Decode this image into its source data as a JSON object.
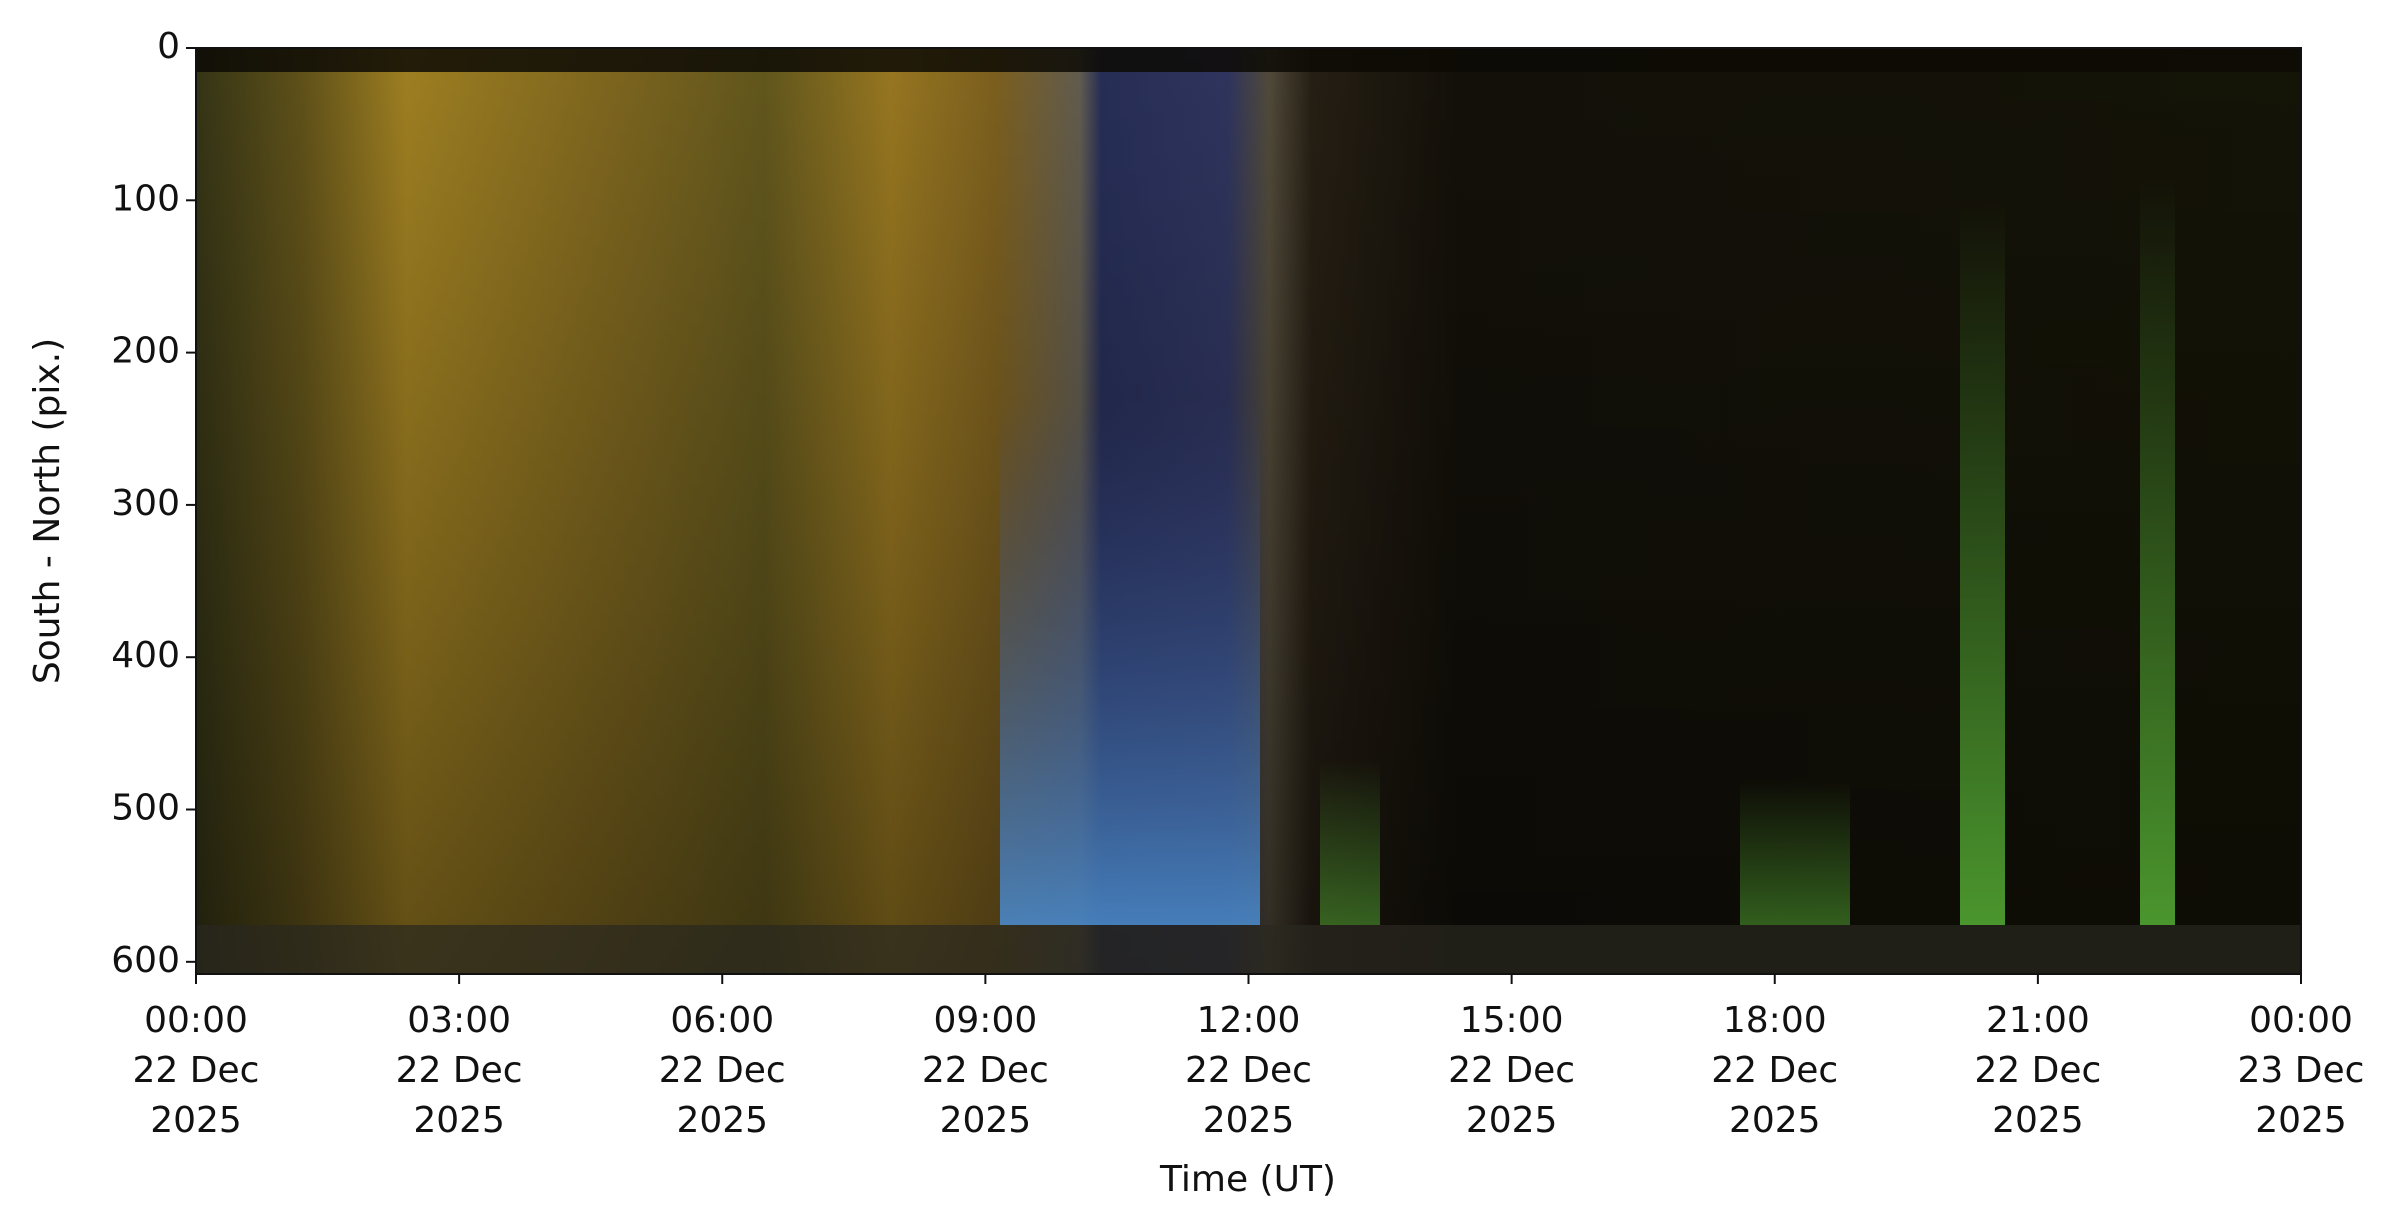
{
  "chart_data": {
    "type": "keogram",
    "xlabel": "Time (UT)",
    "ylabel": "South - North (pix.)",
    "xlim": [
      "2025-12-22T00:00",
      "2025-12-23T00:00"
    ],
    "xticks": [
      {
        "value": "2025-12-22T00:00",
        "label": "00:00\n22 Dec\n2025"
      },
      {
        "value": "2025-12-22T03:00",
        "label": "03:00\n22 Dec\n2025"
      },
      {
        "value": "2025-12-22T06:00",
        "label": "06:00\n22 Dec\n2025"
      },
      {
        "value": "2025-12-22T09:00",
        "label": "09:00\n22 Dec\n2025"
      },
      {
        "value": "2025-12-22T12:00",
        "label": "12:00\n22 Dec\n2025"
      },
      {
        "value": "2025-12-22T15:00",
        "label": "15:00\n22 Dec\n2025"
      },
      {
        "value": "2025-12-22T18:00",
        "label": "18:00\n22 Dec\n2025"
      },
      {
        "value": "2025-12-22T21:00",
        "label": "21:00\n22 Dec\n2025"
      },
      {
        "value": "2025-12-23T00:00",
        "label": "00:00\n23 Dec\n2025"
      }
    ],
    "ylim": [
      0,
      608
    ],
    "y_inverted": true,
    "yticks": [
      0,
      100,
      200,
      300,
      400,
      500,
      600
    ]
  }
}
